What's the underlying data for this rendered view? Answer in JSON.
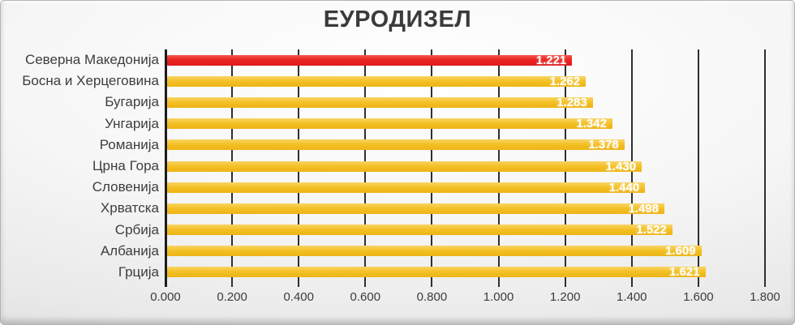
{
  "title": "ЕУРОДИЗЕЛ",
  "chart_data": {
    "type": "bar",
    "orientation": "horizontal",
    "title": "ЕУРОДИЗЕЛ",
    "categories": [
      "Северна Македонија",
      "Босна и Херцеговина",
      "Бугарија",
      "Унгарија",
      "Романија",
      "Црна Гора",
      "Словенија",
      "Хрватска",
      "Србија",
      "Албанија",
      "Грција"
    ],
    "values": [
      1.221,
      1.262,
      1.283,
      1.342,
      1.378,
      1.43,
      1.44,
      1.498,
      1.522,
      1.609,
      1.621
    ],
    "value_labels": [
      "1.221",
      "1.262",
      "1.283",
      "1.342",
      "1.378",
      "1.430",
      "1.440",
      "1.498",
      "1.522",
      "1.609",
      "1.621"
    ],
    "highlight_index": 0,
    "xlim": [
      0,
      1.8
    ],
    "x_tick_values": [
      0,
      0.2,
      0.4,
      0.6,
      0.8,
      1.0,
      1.2,
      1.4,
      1.6,
      1.8
    ],
    "x_tick_labels": [
      "0.000",
      "0.200",
      "0.400",
      "0.600",
      "0.800",
      "1.000",
      "1.200",
      "1.400",
      "1.600",
      "1.800"
    ],
    "grid": true,
    "legend": false,
    "xlabel": "",
    "ylabel": "",
    "colors": {
      "bar_highlight": {
        "base": "#ea241f",
        "top": "#f4574e",
        "bottom": "#de1a1d"
      },
      "bar_default": {
        "base": "#f4c127",
        "top": "#f8d468",
        "bottom": "#edb414"
      },
      "gridline": "#2f2f2f",
      "axis_line": "#1c1c1c",
      "label_text": "#3d3d3d",
      "value_text": "#ffffff",
      "title_text": "#3b3b3b"
    }
  }
}
